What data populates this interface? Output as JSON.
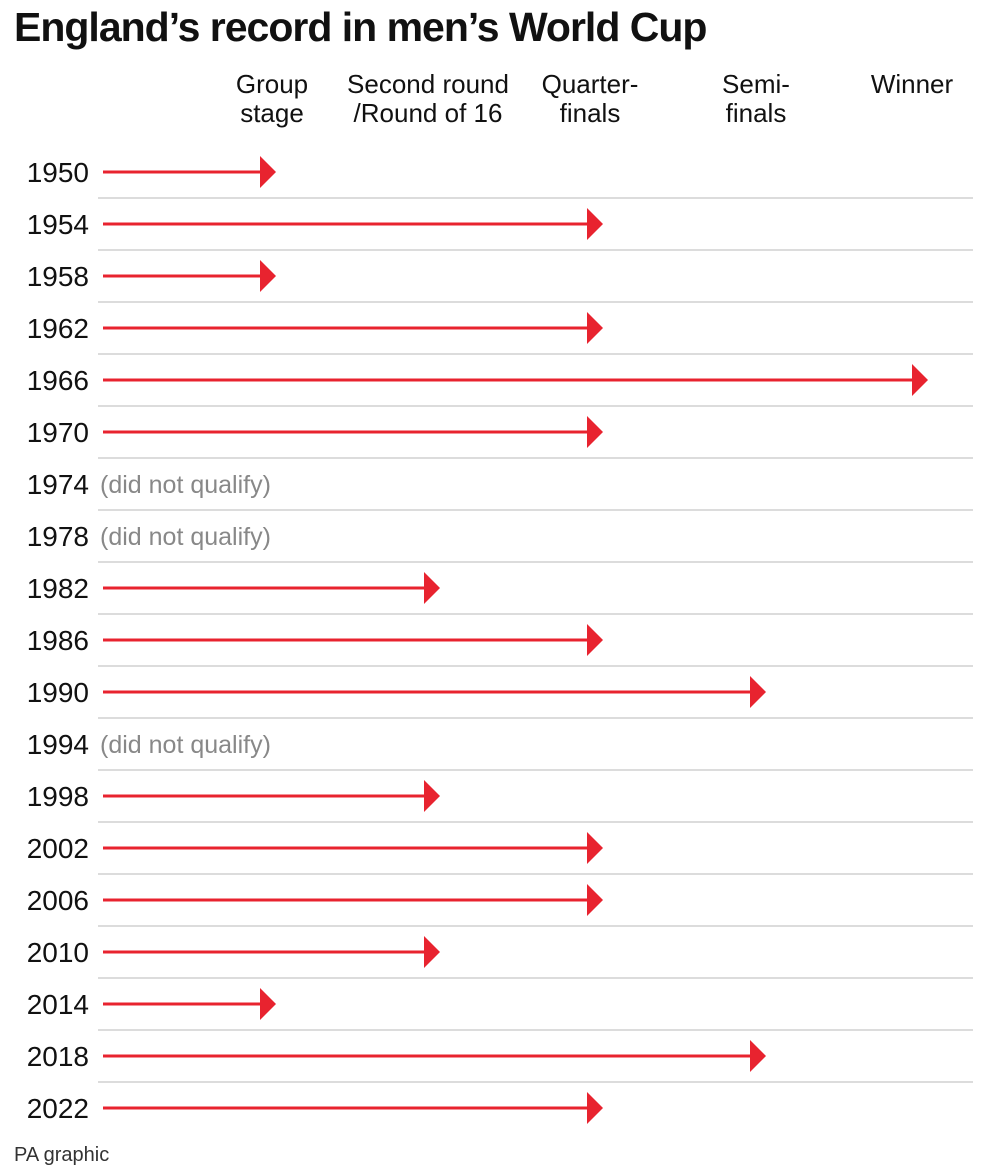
{
  "title": "England’s record in men’s World Cup",
  "source": "PA graphic",
  "colors": {
    "arrow": "#e8232f",
    "grid": "#c8c8c8",
    "note": "#888888"
  },
  "chart_data": {
    "type": "bar",
    "orientation": "horizontal",
    "title": "England’s record in men’s World Cup",
    "stages": [
      "Group\nstage",
      "Second round\n/Round of 16",
      "Quarter-\nfinals",
      "Semi-\nfinals",
      "Winner"
    ],
    "categories": [
      "1950",
      "1954",
      "1958",
      "1962",
      "1966",
      "1970",
      "1974",
      "1978",
      "1982",
      "1986",
      "1990",
      "1994",
      "1998",
      "2002",
      "2006",
      "2010",
      "2014",
      "2018",
      "2022"
    ],
    "values": [
      1,
      3,
      1,
      3,
      5,
      3,
      null,
      null,
      2,
      3,
      4,
      null,
      2,
      3,
      3,
      2,
      1,
      4,
      3
    ],
    "notes": [
      "",
      "",
      "",
      "",
      "",
      "",
      "(did not qualify)",
      "(did not qualify)",
      "",
      "",
      "",
      "(did not qualify)",
      "",
      "",
      "",
      "",
      "",
      "",
      ""
    ],
    "grid": true
  }
}
